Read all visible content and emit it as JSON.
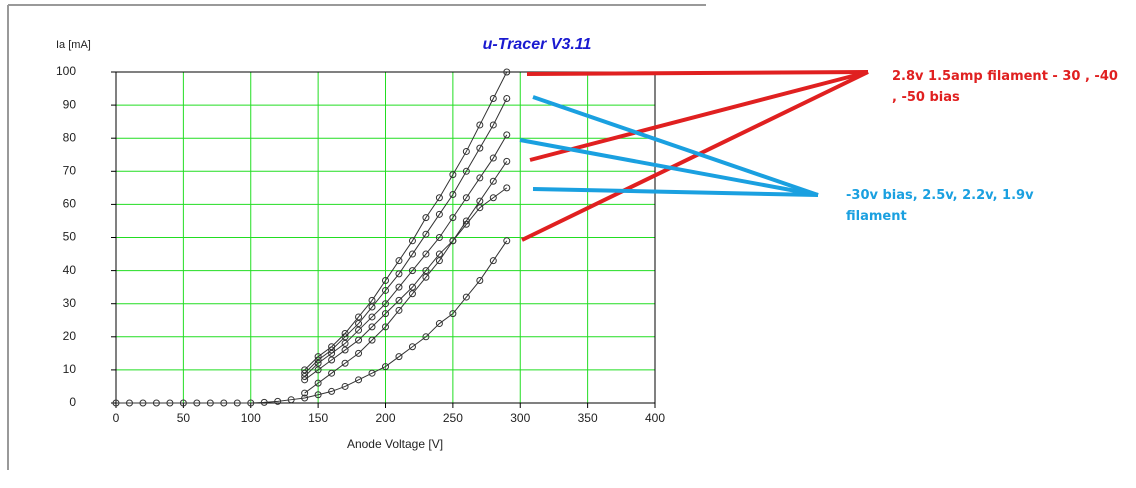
{
  "chart_data": {
    "type": "line",
    "title": "u-Tracer V3.11",
    "title_color": "#1a1ad0",
    "xlabel": "Anode Voltage [V]",
    "ylabel": "Ia [mA]",
    "xlim": [
      0,
      400
    ],
    "xticks": [
      0,
      50,
      100,
      150,
      200,
      250,
      300,
      350,
      400
    ],
    "ylim": [
      0,
      100
    ],
    "yticks": [
      0,
      10,
      20,
      30,
      40,
      50,
      60,
      70,
      80,
      90,
      100
    ],
    "grid": true,
    "grid_color": "#22dd22",
    "series": [
      {
        "color": "#333333",
        "x": [
          140,
          150,
          160,
          170,
          180,
          190,
          200,
          210,
          220,
          230,
          240,
          250,
          260,
          270,
          280,
          290
        ],
        "values": [
          10,
          14,
          17,
          21,
          26,
          31,
          37,
          43,
          49,
          56,
          62,
          69,
          76,
          84,
          92,
          100
        ]
      },
      {
        "color": "#333333",
        "x": [
          140,
          150,
          160,
          170,
          180,
          190,
          200,
          210,
          220,
          230,
          240,
          250,
          260,
          270,
          280,
          290
        ],
        "values": [
          9,
          13,
          16,
          20,
          24,
          29,
          34,
          39,
          45,
          51,
          57,
          63,
          70,
          77,
          84,
          92
        ]
      },
      {
        "color": "#333333",
        "x": [
          140,
          150,
          160,
          170,
          180,
          190,
          200,
          210,
          220,
          230,
          240,
          250,
          260,
          270,
          280,
          290
        ],
        "values": [
          8,
          12,
          15,
          18,
          22,
          26,
          30,
          35,
          40,
          45,
          50,
          56,
          62,
          68,
          74,
          81
        ]
      },
      {
        "color": "#333333",
        "x": [
          140,
          150,
          160,
          170,
          180,
          190,
          200,
          210,
          220,
          230,
          240,
          250,
          260,
          270,
          280,
          290
        ],
        "values": [
          3,
          6,
          9,
          12,
          15,
          19,
          23,
          28,
          33,
          38,
          43,
          49,
          55,
          61,
          67,
          73
        ]
      },
      {
        "color": "#333333",
        "x": [
          140,
          150,
          160,
          170,
          180,
          190,
          200,
          210,
          220,
          230,
          240,
          250,
          260,
          270,
          280,
          290
        ],
        "values": [
          7,
          10,
          13,
          16,
          19,
          23,
          27,
          31,
          35,
          40,
          45,
          49,
          54,
          59,
          62,
          65
        ]
      },
      {
        "color": "#333333",
        "x": [
          0,
          10,
          20,
          30,
          40,
          50,
          60,
          70,
          80,
          90,
          100,
          110,
          120,
          130,
          140,
          150,
          160,
          170,
          180,
          190,
          200,
          210,
          220,
          230,
          240,
          250,
          260,
          270,
          280,
          290
        ],
        "values": [
          0,
          0,
          0,
          0,
          0,
          0,
          0,
          0,
          0,
          0,
          0,
          0.2,
          0.5,
          1,
          1.5,
          2.5,
          3.5,
          5,
          7,
          9,
          11,
          14,
          17,
          20,
          24,
          27,
          32,
          37,
          43,
          49
        ]
      }
    ],
    "annotations": [
      {
        "text": "2.8v 1.5amp filament - 30 , -40 , -50 bias",
        "color": "#e02020"
      },
      {
        "text": "-30v bias, 2.5v, 2.2v, 1.9v filament",
        "color": "#1aa0e0"
      }
    ]
  }
}
